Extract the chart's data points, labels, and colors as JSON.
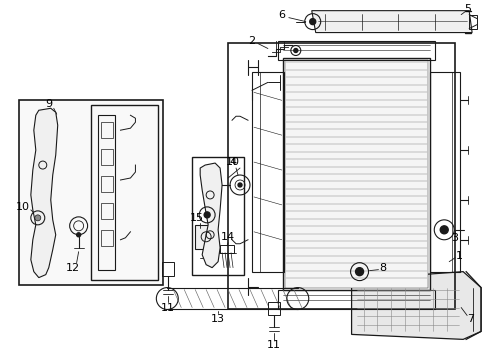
{
  "bg_color": "#ffffff",
  "line_color": "#1a1a1a",
  "label_color": "#000000",
  "fig_width": 4.89,
  "fig_height": 3.6,
  "dpi": 100,
  "gray_fill": "#e8e8e8",
  "light_gray": "#d0d0d0"
}
